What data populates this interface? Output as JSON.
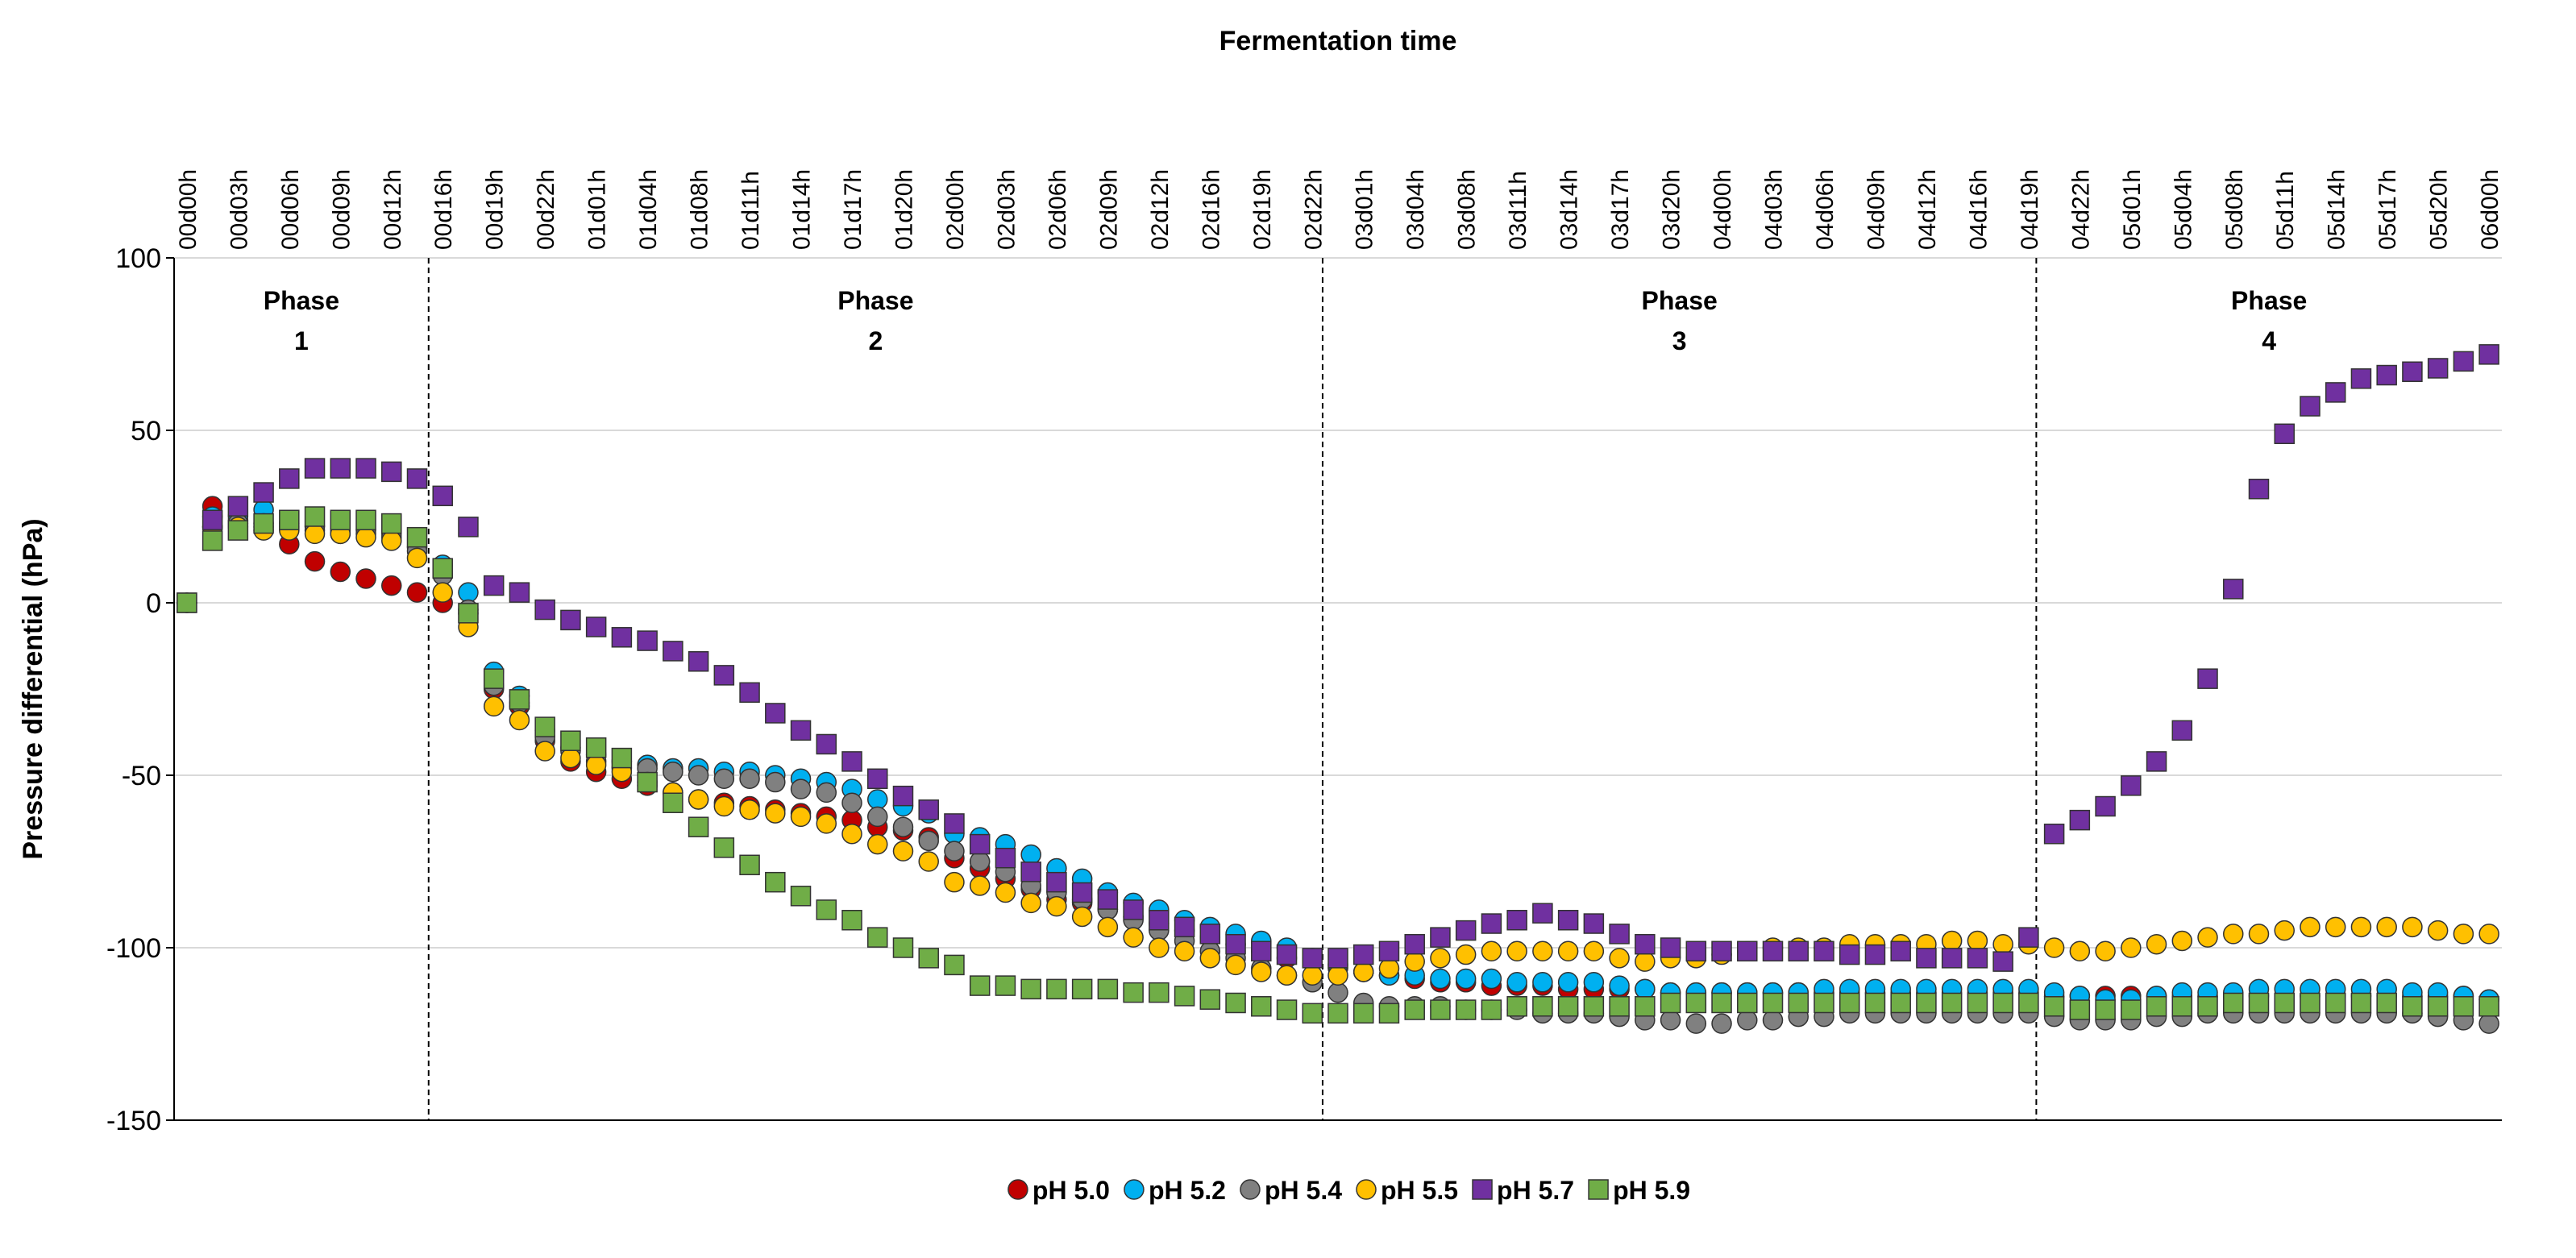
{
  "chart_data": {
    "type": "scatter",
    "title": "Fermentation time",
    "ylabel": "Pressure differential (hPa)",
    "categories": [
      "00d00h",
      null,
      "00d03h",
      null,
      "00d06h",
      null,
      "00d09h",
      null,
      "00d12h",
      null,
      "00d16h",
      null,
      "00d19h",
      null,
      "00d22h",
      null,
      "01d01h",
      null,
      "01d04h",
      null,
      "01d08h",
      null,
      "01d11h",
      null,
      "01d14h",
      null,
      "01d17h",
      null,
      "01d20h",
      null,
      "02d00h",
      null,
      "02d03h",
      null,
      "02d06h",
      null,
      "02d09h",
      null,
      "02d12h",
      null,
      "02d16h",
      null,
      "02d19h",
      null,
      "02d22h",
      null,
      "03d01h",
      null,
      "03d04h",
      null,
      "03d08h",
      null,
      "03d11h",
      null,
      "03d14h",
      null,
      "03d17h",
      null,
      "03d20h",
      null,
      "04d00h",
      null,
      "04d03h",
      null,
      "04d06h",
      null,
      "04d09h",
      null,
      "04d12h",
      null,
      "04d16h",
      null,
      "04d19h",
      null,
      "04d22h",
      null,
      "05d01h",
      null,
      "05d04h",
      null,
      "05d08h",
      null,
      "05d11h",
      null,
      "05d14h",
      null,
      "05d17h",
      null,
      "05d20h",
      null,
      "06d00h"
    ],
    "ylim": [
      -150,
      100
    ],
    "yticks": [
      -150,
      -100,
      -50,
      0,
      50,
      100
    ],
    "grid": true,
    "phase_boundaries": [
      9.45,
      44.4,
      72.3
    ],
    "phases": [
      {
        "name": "Phase",
        "number": "1"
      },
      {
        "name": "Phase",
        "number": "2"
      },
      {
        "name": "Phase",
        "number": "3"
      },
      {
        "name": "Phase",
        "number": "4"
      }
    ],
    "legend": "bottom",
    "series": [
      {
        "name": "pH 5.0",
        "color": "#c00000",
        "marker": "circle",
        "values": [
          0,
          28,
          25,
          22,
          17,
          12,
          9,
          7,
          5,
          3,
          0,
          -3,
          -25,
          -30,
          -40,
          -46,
          -49,
          -51,
          -53,
          -55,
          -57,
          -58,
          -59,
          -60,
          -61,
          -62,
          -63,
          -65,
          -66,
          -68,
          -74,
          -77,
          -80,
          -83,
          -86,
          -87,
          -89,
          -91,
          -93,
          -95,
          -97,
          -99,
          -101,
          -103,
          -104,
          -106,
          -107,
          -108,
          -109,
          -110,
          -110,
          -111,
          -111,
          -111,
          -112,
          -112,
          -112,
          -112,
          -113,
          -113,
          -113,
          -113,
          -113,
          -113,
          -113,
          -113,
          -113,
          -113,
          -113,
          -113,
          -113,
          -113,
          -113,
          -114,
          -114,
          -114,
          -114,
          -114,
          -114,
          -114,
          -114,
          -114,
          -114,
          -114,
          -114,
          -114,
          -114,
          -114,
          -114,
          -114,
          -115
        ]
      },
      {
        "name": "pH 5.2",
        "color": "#00b0f0",
        "marker": "circle",
        "values": [
          0,
          25,
          24,
          27,
          23,
          22,
          21,
          21,
          20,
          16,
          11,
          3,
          -20,
          -27,
          -37,
          -42,
          -44,
          -46,
          -47,
          -48,
          -48,
          -49,
          -49,
          -50,
          -51,
          -52,
          -54,
          -57,
          -59,
          -61,
          -67,
          -68,
          -70,
          -73,
          -77,
          -80,
          -84,
          -87,
          -89,
          -92,
          -94,
          -96,
          -98,
          -100,
          -103,
          -105,
          -107,
          -108,
          -108,
          -109,
          -109,
          -109,
          -110,
          -110,
          -110,
          -110,
          -111,
          -112,
          -113,
          -113,
          -113,
          -113,
          -113,
          -113,
          -112,
          -112,
          -112,
          -112,
          -112,
          -112,
          -112,
          -112,
          -112,
          -113,
          -114,
          -115,
          -115,
          -114,
          -113,
          -113,
          -113,
          -112,
          -112,
          -112,
          -112,
          -112,
          -112,
          -113,
          -113,
          -114,
          -115
        ]
      },
      {
        "name": "pH 5.4",
        "color": "#808080",
        "marker": "circle",
        "values": [
          0,
          22,
          23,
          23,
          22,
          21,
          20,
          20,
          19,
          15,
          8,
          -2,
          -24,
          -29,
          -39,
          -43,
          -46,
          -48,
          -48,
          -49,
          -50,
          -51,
          -51,
          -52,
          -54,
          -55,
          -58,
          -62,
          -65,
          -69,
          -72,
          -75,
          -78,
          -82,
          -84,
          -86,
          -89,
          -92,
          -95,
          -98,
          -101,
          -103,
          -106,
          -108,
          -110,
          -113,
          -116,
          -117,
          -117,
          -117,
          -118,
          -118,
          -118,
          -119,
          -119,
          -119,
          -120,
          -121,
          -121,
          -122,
          -122,
          -121,
          -121,
          -120,
          -120,
          -119,
          -119,
          -119,
          -119,
          -119,
          -119,
          -119,
          -119,
          -120,
          -121,
          -121,
          -121,
          -120,
          -120,
          -119,
          -119,
          -119,
          -119,
          -119,
          -119,
          -119,
          -119,
          -119,
          -120,
          -121,
          -122
        ]
      },
      {
        "name": "pH 5.5",
        "color": "#ffc000",
        "marker": "circle",
        "values": [
          0,
          22,
          22,
          21,
          21,
          20,
          20,
          19,
          18,
          13,
          3,
          -7,
          -30,
          -34,
          -43,
          -45,
          -47,
          -49,
          -52,
          -55,
          -57,
          -59,
          -60,
          -61,
          -62,
          -64,
          -67,
          -70,
          -72,
          -75,
          -81,
          -82,
          -84,
          -87,
          -88,
          -91,
          -94,
          -97,
          -100,
          -101,
          -103,
          -105,
          -107,
          -108,
          -108,
          -108,
          -107,
          -106,
          -104,
          -103,
          -102,
          -101,
          -101,
          -101,
          -101,
          -101,
          -103,
          -104,
          -103,
          -103,
          -102,
          -101,
          -100,
          -100,
          -100,
          -99,
          -99,
          -99,
          -99,
          -98,
          -98,
          -99,
          -99,
          -100,
          -101,
          -101,
          -100,
          -99,
          -98,
          -97,
          -96,
          -96,
          -95,
          -94,
          -94,
          -94,
          -94,
          -94,
          -95,
          -96,
          -96
        ]
      },
      {
        "name": "pH 5.7",
        "color": "#7030a0",
        "marker": "square",
        "values": [
          0,
          24,
          28,
          32,
          36,
          39,
          39,
          39,
          38,
          36,
          31,
          22,
          5,
          3,
          -2,
          -5,
          -7,
          -10,
          -11,
          -14,
          -17,
          -21,
          -26,
          -32,
          -37,
          -41,
          -46,
          -51,
          -56,
          -60,
          -64,
          -70,
          -74,
          -78,
          -81,
          -84,
          -86,
          -89,
          -92,
          -94,
          -96,
          -99,
          -101,
          -102,
          -103,
          -103,
          -102,
          -101,
          -99,
          -97,
          -95,
          -93,
          -92,
          -90,
          -92,
          -93,
          -96,
          -99,
          -100,
          -101,
          -101,
          -101,
          -101,
          -101,
          -101,
          -102,
          -102,
          -101,
          -103,
          -103,
          -103,
          -104,
          -97,
          -67,
          -63,
          -59,
          -53,
          -46,
          -37,
          -22,
          4,
          33,
          49,
          57,
          61,
          65,
          66,
          67,
          68,
          70,
          72
        ]
      },
      {
        "name": "pH 5.9",
        "color": "#70ad47",
        "marker": "square",
        "values": [
          0,
          18,
          21,
          23,
          24,
          25,
          24,
          24,
          23,
          19,
          10,
          -3,
          -22,
          -28,
          -36,
          -40,
          -42,
          -45,
          -52,
          -58,
          -65,
          -71,
          -76,
          -81,
          -85,
          -89,
          -92,
          -97,
          -100,
          -103,
          -105,
          -111,
          -111,
          -112,
          -112,
          -112,
          -112,
          -113,
          -113,
          -114,
          -115,
          -116,
          -117,
          -118,
          -119,
          -119,
          -119,
          -119,
          -118,
          -118,
          -118,
          -118,
          -117,
          -117,
          -117,
          -117,
          -117,
          -117,
          -116,
          -116,
          -116,
          -116,
          -116,
          -116,
          -116,
          -116,
          -116,
          -116,
          -116,
          -116,
          -116,
          -116,
          -116,
          -117,
          -118,
          -118,
          -118,
          -117,
          -117,
          -117,
          -116,
          -116,
          -116,
          -116,
          -116,
          -116,
          -116,
          -117,
          -117,
          -117,
          -117
        ]
      }
    ]
  }
}
